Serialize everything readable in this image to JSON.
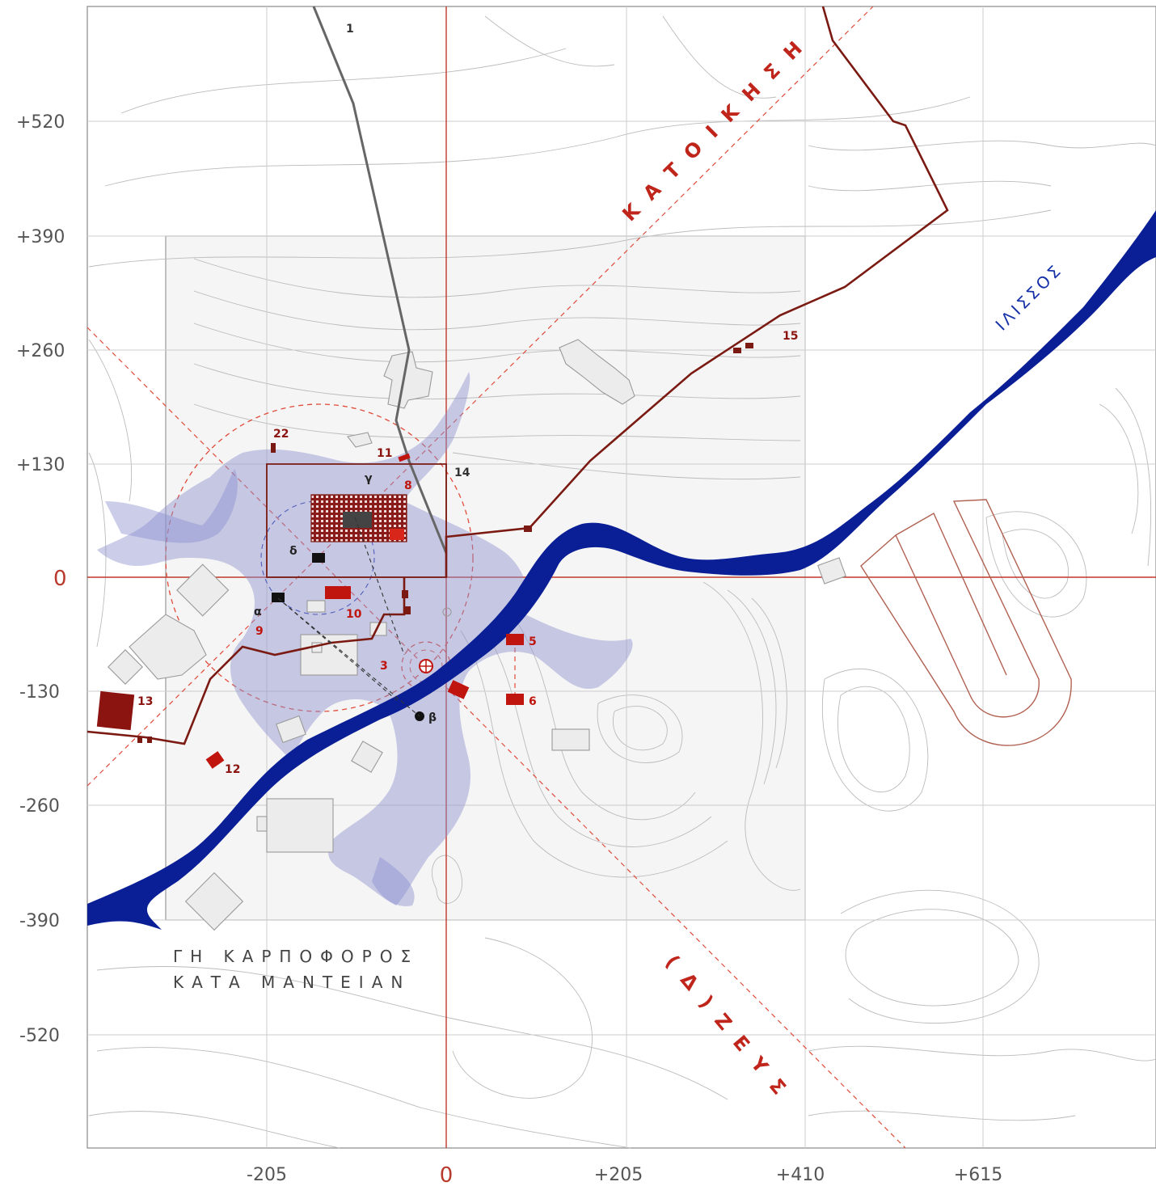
{
  "axes": {
    "y_ticks": [
      "+520",
      "+390",
      "+260",
      "+130",
      "0",
      "-130",
      "-260",
      "-390",
      "-520"
    ],
    "x_ticks": [
      "-205",
      "0",
      "+205",
      "+410",
      "+615"
    ]
  },
  "labels": {
    "katoikise": "ΚΑΤΟΙΚΗΣΗ",
    "ilissos": "ΙΛΙΣΣΟΣ",
    "zeus": "(Δ)ΖΕΥΣ",
    "caption_line1": "ΓΗ ΚΑΡΠΟΦΟΡΟΣ",
    "caption_line2": "ΚΑΤΑ ΜΑΝΤΕΙΑΝ"
  },
  "markers": [
    "1",
    "3",
    "5",
    "6",
    "8",
    "9",
    "10",
    "11",
    "12",
    "13",
    "14",
    "15",
    "22"
  ],
  "greek_points": [
    "α",
    "β",
    "γ",
    "δ"
  ],
  "colors": {
    "river": "#0a1e96",
    "axis_red": "#c0392b",
    "wall": "#7a1a12",
    "marker_red": "#c0150e",
    "figure": "#8c90cf",
    "contour": "#b9b9b9"
  }
}
